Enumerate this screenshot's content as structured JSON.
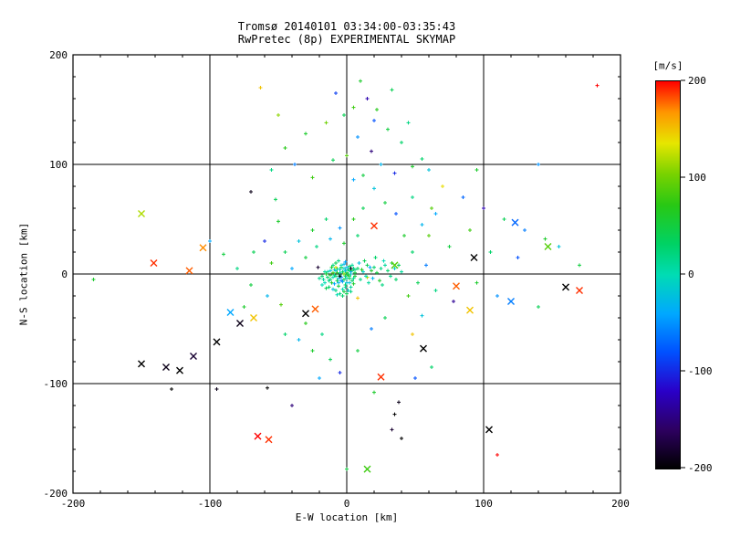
{
  "chart_data": {
    "type": "scatter",
    "title": "Tromsø 20140101 03:34:00-03:35:43",
    "subtitle": "RwPretec (8p) EXPERIMENTAL SKYMAP",
    "xlabel": "E-W location [km]",
    "ylabel": "N-S location [km]",
    "xlim": [
      -200,
      200
    ],
    "ylim": [
      -200,
      200
    ],
    "xticks": [
      -200,
      -100,
      0,
      100,
      200
    ],
    "yticks": [
      -200,
      -100,
      0,
      100,
      200
    ],
    "minor_tick_step": 20,
    "grid": true,
    "background": "#ffffff",
    "axis_color": "#000000",
    "colorbar": {
      "label": "[m/s]",
      "min": -200,
      "max": 200,
      "ticks": [
        200,
        100,
        0,
        -100,
        -200
      ]
    },
    "colormap": [
      [
        0.0,
        "#000000"
      ],
      [
        0.1,
        "#2d0060"
      ],
      [
        0.2,
        "#2a00c8"
      ],
      [
        0.3,
        "#0050ff"
      ],
      [
        0.4,
        "#00a8ff"
      ],
      [
        0.5,
        "#00dcb4"
      ],
      [
        0.58,
        "#00d264"
      ],
      [
        0.68,
        "#28c814"
      ],
      [
        0.76,
        "#78d200"
      ],
      [
        0.84,
        "#e6e600"
      ],
      [
        0.92,
        "#ff9600"
      ],
      [
        1.0,
        "#ff0000"
      ]
    ],
    "legend": "points are [x_km, y_km, velocity_m_per_s]; dot = small plus marker, x = cross marker",
    "points_dot": [
      [
        -3,
        2,
        30
      ],
      [
        -5,
        -1,
        10
      ],
      [
        -8,
        3,
        -20
      ],
      [
        -2,
        -5,
        40
      ],
      [
        0,
        1,
        60
      ],
      [
        2,
        -2,
        20
      ],
      [
        -10,
        -3,
        0
      ],
      [
        -6,
        -8,
        -30
      ],
      [
        -4,
        6,
        50
      ],
      [
        1,
        4,
        10
      ],
      [
        3,
        0,
        -10
      ],
      [
        -1,
        -10,
        30
      ],
      [
        -12,
        -5,
        20
      ],
      [
        -7,
        1,
        70
      ],
      [
        -9,
        -9,
        -40
      ],
      [
        4,
        3,
        40
      ],
      [
        -14,
        2,
        10
      ],
      [
        -3,
        -14,
        0
      ],
      [
        -6,
        12,
        20
      ],
      [
        2,
        -8,
        -20
      ],
      [
        -18,
        -2,
        30
      ],
      [
        -11,
        6,
        60
      ],
      [
        5,
        -4,
        10
      ],
      [
        -2,
        9,
        -30
      ],
      [
        0,
        -18,
        40
      ],
      [
        -8,
        -15,
        20
      ],
      [
        -16,
        -8,
        0
      ],
      [
        6,
        1,
        50
      ],
      [
        -5,
        4,
        -10
      ],
      [
        -13,
        -12,
        30
      ],
      [
        1,
        -1,
        80
      ],
      [
        -4,
        -3,
        -50
      ],
      [
        -10,
        8,
        20
      ],
      [
        3,
        -12,
        10
      ],
      [
        -7,
        -6,
        40
      ],
      [
        -1,
        3,
        -20
      ],
      [
        -15,
        0,
        60
      ],
      [
        2,
        7,
        30
      ],
      [
        -9,
        -1,
        10
      ],
      [
        -3,
        -7,
        -30
      ],
      [
        5,
        5,
        20
      ],
      [
        -6,
        -11,
        50
      ],
      [
        0,
        -4,
        0
      ],
      [
        -12,
        3,
        -20
      ],
      [
        -2,
        0,
        100
      ],
      [
        4,
        -6,
        30
      ],
      [
        -17,
        -5,
        10
      ],
      [
        -8,
        10,
        40
      ],
      [
        1,
        -15,
        -10
      ],
      [
        -5,
        -18,
        20
      ],
      [
        -11,
        -8,
        60
      ],
      [
        3,
        2,
        -40
      ],
      [
        -14,
        -3,
        30
      ],
      [
        -1,
        -12,
        10
      ],
      [
        6,
        -2,
        50
      ],
      [
        -4,
        8,
        0
      ],
      [
        -10,
        -14,
        -20
      ],
      [
        2,
        -4,
        40
      ],
      [
        -7,
        5,
        20
      ],
      [
        -16,
        2,
        10
      ],
      [
        0,
        6,
        -30
      ],
      [
        -3,
        -20,
        30
      ],
      [
        5,
        -9,
        60
      ],
      [
        -9,
        4,
        -10
      ],
      [
        -13,
        -6,
        20
      ],
      [
        1,
        0,
        40
      ],
      [
        -6,
        -4,
        -20
      ],
      [
        -2,
        -16,
        50
      ],
      [
        4,
        8,
        10
      ],
      [
        -18,
        -10,
        0
      ],
      [
        -8,
        -2,
        30
      ],
      [
        -1,
        11,
        -40
      ],
      [
        3,
        -16,
        20
      ],
      [
        -12,
        -1,
        60
      ],
      [
        -5,
        1,
        10
      ],
      [
        0,
        -8,
        -20
      ],
      [
        -15,
        -13,
        40
      ],
      [
        2,
        3,
        30
      ],
      [
        -7,
        -19,
        0
      ],
      [
        -4,
        -6,
        -60
      ],
      [
        6,
        4,
        20
      ],
      [
        -10,
        1,
        80
      ],
      [
        -2,
        5,
        -10
      ],
      [
        -20,
        -4,
        15
      ],
      [
        -1,
        -2,
        25
      ],
      [
        -5,
        -2,
        -200
      ],
      [
        3,
        5,
        -190
      ],
      [
        -21,
        6,
        -180
      ],
      [
        -8,
        6,
        130
      ],
      [
        15,
        -3,
        120
      ],
      [
        8,
        -22,
        150
      ],
      [
        8,
        5,
        30
      ],
      [
        12,
        2,
        -10
      ],
      [
        15,
        8,
        40
      ],
      [
        10,
        -5,
        20
      ],
      [
        18,
        3,
        60
      ],
      [
        14,
        -2,
        0
      ],
      [
        20,
        6,
        30
      ],
      [
        9,
        10,
        -20
      ],
      [
        16,
        -8,
        10
      ],
      [
        22,
        1,
        50
      ],
      [
        11,
        4,
        70
      ],
      [
        25,
        5,
        20
      ],
      [
        19,
        -4,
        -30
      ],
      [
        13,
        12,
        40
      ],
      [
        28,
        8,
        10
      ],
      [
        30,
        3,
        30
      ],
      [
        24,
        -6,
        60
      ],
      [
        35,
        5,
        -10
      ],
      [
        32,
        -2,
        20
      ],
      [
        27,
        12,
        0
      ],
      [
        38,
        8,
        40
      ],
      [
        21,
        15,
        30
      ],
      [
        17,
        6,
        -40
      ],
      [
        26,
        -10,
        20
      ],
      [
        33,
        10,
        50
      ],
      [
        40,
        2,
        10
      ],
      [
        36,
        -5,
        30
      ],
      [
        -63,
        170,
        150
      ],
      [
        10,
        176,
        60
      ],
      [
        15,
        160,
        -130
      ],
      [
        5,
        152,
        80
      ],
      [
        -2,
        145,
        40
      ],
      [
        20,
        140,
        -80
      ],
      [
        -15,
        138,
        100
      ],
      [
        30,
        132,
        50
      ],
      [
        -30,
        128,
        60
      ],
      [
        8,
        125,
        -50
      ],
      [
        40,
        120,
        30
      ],
      [
        -45,
        115,
        70
      ],
      [
        18,
        112,
        -150
      ],
      [
        0,
        108,
        90
      ],
      [
        -10,
        104,
        40
      ],
      [
        25,
        100,
        -30
      ],
      [
        48,
        98,
        60
      ],
      [
        -55,
        95,
        20
      ],
      [
        35,
        92,
        -100
      ],
      [
        12,
        90,
        50
      ],
      [
        -25,
        88,
        80
      ],
      [
        5,
        86,
        -40
      ],
      [
        55,
        105,
        30
      ],
      [
        -38,
        100,
        -60
      ],
      [
        22,
        150,
        70
      ],
      [
        -8,
        165,
        -90
      ],
      [
        45,
        138,
        20
      ],
      [
        60,
        95,
        -20
      ],
      [
        -50,
        145,
        110
      ],
      [
        33,
        168,
        40
      ],
      [
        70,
        80,
        140
      ],
      [
        85,
        70,
        -70
      ],
      [
        100,
        60,
        -130
      ],
      [
        115,
        50,
        40
      ],
      [
        130,
        40,
        -60
      ],
      [
        145,
        32,
        60
      ],
      [
        155,
        25,
        -20
      ],
      [
        90,
        40,
        80
      ],
      [
        75,
        25,
        50
      ],
      [
        65,
        55,
        -40
      ],
      [
        105,
        20,
        30
      ],
      [
        125,
        15,
        -80
      ],
      [
        60,
        35,
        90
      ],
      [
        95,
        -8,
        60
      ],
      [
        110,
        -20,
        -50
      ],
      [
        140,
        -30,
        40
      ],
      [
        78,
        -25,
        -140
      ],
      [
        65,
        -15,
        20
      ],
      [
        170,
        8,
        50
      ],
      [
        140,
        100,
        -50
      ],
      [
        95,
        95,
        60
      ],
      [
        183,
        172,
        200
      ],
      [
        -185,
        -5,
        60
      ],
      [
        -100,
        30,
        -40
      ],
      [
        -90,
        18,
        50
      ],
      [
        -70,
        75,
        -190
      ],
      [
        -52,
        68,
        40
      ],
      [
        -128,
        -105,
        -200
      ],
      [
        -95,
        -105,
        -190
      ],
      [
        -58,
        -104,
        -200
      ],
      [
        -45,
        -55,
        30
      ],
      [
        -35,
        -60,
        -30
      ],
      [
        -25,
        -70,
        60
      ],
      [
        -12,
        -78,
        40
      ],
      [
        -5,
        -90,
        -100
      ],
      [
        8,
        -70,
        50
      ],
      [
        -18,
        -55,
        20
      ],
      [
        -30,
        -45,
        70
      ],
      [
        18,
        -50,
        -60
      ],
      [
        28,
        -40,
        40
      ],
      [
        -48,
        -28,
        90
      ],
      [
        -58,
        -20,
        -30
      ],
      [
        -70,
        -10,
        50
      ],
      [
        -80,
        5,
        20
      ],
      [
        35,
        -128,
        -200
      ],
      [
        38,
        -117,
        -190
      ],
      [
        33,
        -142,
        -180
      ],
      [
        40,
        -150,
        -200
      ],
      [
        110,
        -165,
        200
      ],
      [
        0,
        -178,
        50
      ],
      [
        -40,
        -120,
        -150
      ],
      [
        20,
        -108,
        60
      ],
      [
        50,
        -95,
        -80
      ],
      [
        62,
        -85,
        30
      ],
      [
        -20,
        -95,
        -40
      ],
      [
        -75,
        -30,
        60
      ],
      [
        48,
        -55,
        150
      ],
      [
        55,
        -38,
        -20
      ],
      [
        45,
        -20,
        80
      ],
      [
        52,
        -8,
        40
      ],
      [
        58,
        8,
        -60
      ],
      [
        48,
        20,
        30
      ],
      [
        42,
        35,
        60
      ],
      [
        55,
        45,
        -30
      ],
      [
        62,
        60,
        90
      ],
      [
        48,
        70,
        20
      ],
      [
        36,
        55,
        -80
      ],
      [
        28,
        65,
        50
      ],
      [
        20,
        78,
        -20
      ],
      [
        12,
        60,
        40
      ],
      [
        5,
        50,
        70
      ],
      [
        -5,
        42,
        -50
      ],
      [
        -15,
        50,
        30
      ],
      [
        -25,
        40,
        60
      ],
      [
        -35,
        30,
        -20
      ],
      [
        -45,
        20,
        40
      ],
      [
        -55,
        10,
        80
      ],
      [
        -40,
        5,
        -40
      ],
      [
        -30,
        15,
        50
      ],
      [
        -22,
        25,
        20
      ],
      [
        -12,
        32,
        -30
      ],
      [
        -2,
        28,
        60
      ],
      [
        8,
        35,
        30
      ],
      [
        -60,
        30,
        -100
      ],
      [
        -50,
        48,
        60
      ],
      [
        -68,
        20,
        40
      ]
    ],
    "points_x": [
      [
        -150,
        55,
        120
      ],
      [
        -141,
        10,
        190
      ],
      [
        -115,
        3,
        180
      ],
      [
        -105,
        24,
        170
      ],
      [
        -150,
        -82,
        -200
      ],
      [
        -132,
        -85,
        -190
      ],
      [
        -122,
        -88,
        -200
      ],
      [
        -112,
        -75,
        -180
      ],
      [
        -95,
        -62,
        -200
      ],
      [
        -78,
        -45,
        -190
      ],
      [
        -68,
        -40,
        150
      ],
      [
        -65,
        -148,
        200
      ],
      [
        -57,
        -151,
        190
      ],
      [
        -30,
        -36,
        -200
      ],
      [
        -23,
        -32,
        180
      ],
      [
        20,
        44,
        190
      ],
      [
        35,
        8,
        90
      ],
      [
        56,
        -68,
        -200
      ],
      [
        25,
        -94,
        190
      ],
      [
        80,
        -11,
        180
      ],
      [
        90,
        -33,
        150
      ],
      [
        93,
        15,
        -200
      ],
      [
        120,
        -25,
        -60
      ],
      [
        123,
        47,
        -70
      ],
      [
        147,
        25,
        90
      ],
      [
        160,
        -12,
        -200
      ],
      [
        104,
        -142,
        -200
      ],
      [
        15,
        -178,
        80
      ],
      [
        -85,
        -35,
        -40
      ],
      [
        170,
        -15,
        190
      ]
    ]
  }
}
